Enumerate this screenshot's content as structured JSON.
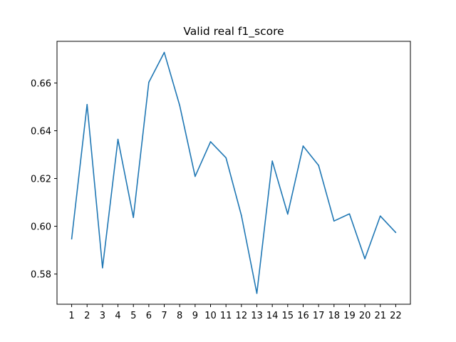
{
  "chart_data": {
    "type": "line",
    "title": "Valid real f1_score",
    "xlabel": "",
    "ylabel": "",
    "x": [
      1,
      2,
      3,
      4,
      5,
      6,
      7,
      8,
      9,
      10,
      11,
      12,
      13,
      14,
      15,
      16,
      17,
      18,
      19,
      20,
      21,
      22
    ],
    "series": [
      {
        "name": "",
        "color": "#1f77b4",
        "values": [
          0.5947,
          0.651,
          0.5826,
          0.6364,
          0.6037,
          0.6603,
          0.6728,
          0.6506,
          0.6209,
          0.6354,
          0.6287,
          0.6045,
          0.5719,
          0.6273,
          0.6051,
          0.6336,
          0.6255,
          0.6022,
          0.6052,
          0.5864,
          0.6043,
          0.5974
        ]
      }
    ],
    "xticks": [
      "1",
      "2",
      "3",
      "4",
      "5",
      "6",
      "7",
      "8",
      "9",
      "10",
      "11",
      "12",
      "13",
      "14",
      "15",
      "16",
      "17",
      "18",
      "19",
      "20",
      "21",
      "22"
    ],
    "yticks": [
      0.58,
      0.6,
      0.62,
      0.64,
      0.66
    ],
    "ytick_labels": [
      "0.58",
      "0.60",
      "0.62",
      "0.64",
      "0.66"
    ],
    "xlim": [
      0.05,
      22.95
    ],
    "ylim": [
      0.56735,
      0.67745
    ],
    "grid": false,
    "legend": "none"
  }
}
